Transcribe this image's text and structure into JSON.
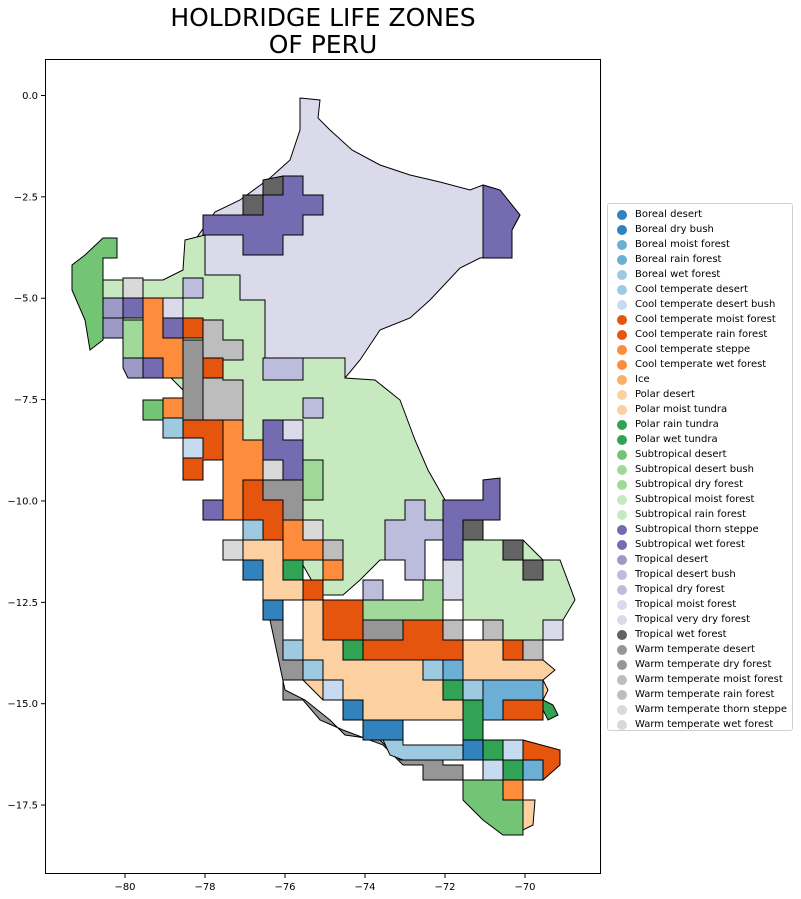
{
  "title_line1": "HOLDRIDGE LIFE ZONES",
  "title_line2": "OF PERU",
  "x_ticks": [
    -80,
    -78,
    -76,
    -74,
    -72,
    -70
  ],
  "x_tick_labels": [
    "−80",
    "−78",
    "−76",
    "−74",
    "−72",
    "−70"
  ],
  "y_ticks": [
    0.0,
    -2.5,
    -5.0,
    -7.5,
    -10.0,
    -12.5,
    -15.0,
    -17.5
  ],
  "y_tick_labels": [
    "0.0",
    "−2.5",
    "−5.0",
    "−7.5",
    "−10.0",
    "−12.5",
    "−15.0",
    "−17.5"
  ],
  "xlim": [
    -82.0,
    -68.1
  ],
  "ylim": [
    -19.2,
    0.9
  ],
  "legend": [
    {
      "label": "Boreal desert",
      "color": "#3182bd"
    },
    {
      "label": "Boreal dry bush",
      "color": "#3182bd"
    },
    {
      "label": "Boreal moist forest",
      "color": "#6baed6"
    },
    {
      "label": "Boreal rain forest",
      "color": "#6baed6"
    },
    {
      "label": "Boreal wet forest",
      "color": "#9ecae1"
    },
    {
      "label": "Cool temperate desert",
      "color": "#9ecae1"
    },
    {
      "label": "Cool temperate desert bush",
      "color": "#c6dbef"
    },
    {
      "label": "Cool temperate moist forest",
      "color": "#e6550d"
    },
    {
      "label": "Cool temperate rain forest",
      "color": "#e6550d"
    },
    {
      "label": "Cool temperate steppe",
      "color": "#fd8d3c"
    },
    {
      "label": "Cool temperate wet forest",
      "color": "#fd8d3c"
    },
    {
      "label": "Ice",
      "color": "#fdae6b"
    },
    {
      "label": "Polar desert",
      "color": "#fdd0a2"
    },
    {
      "label": "Polar moist tundra",
      "color": "#fdd0a2"
    },
    {
      "label": "Polar rain tundra",
      "color": "#31a354"
    },
    {
      "label": "Polar wet tundra",
      "color": "#31a354"
    },
    {
      "label": "Subtropical desert",
      "color": "#74c476"
    },
    {
      "label": "Subtropical desert bush",
      "color": "#a1d99b"
    },
    {
      "label": "Subtropical dry forest",
      "color": "#a1d99b"
    },
    {
      "label": "Subtropical moist forest",
      "color": "#c7e9c0"
    },
    {
      "label": "Subtropical rain forest",
      "color": "#c7e9c0"
    },
    {
      "label": "Subtropical thorn steppe",
      "color": "#756bb1"
    },
    {
      "label": "Subtropical wet forest",
      "color": "#756bb1"
    },
    {
      "label": "Tropical desert",
      "color": "#9e9ac8"
    },
    {
      "label": "Tropical desert bush",
      "color": "#bcbddc"
    },
    {
      "label": "Tropical dry forest",
      "color": "#bcbddc"
    },
    {
      "label": "Tropical moist forest",
      "color": "#dadaeb"
    },
    {
      "label": "Tropical very dry forest",
      "color": "#dadaeb"
    },
    {
      "label": "Tropical wet forest",
      "color": "#636363"
    },
    {
      "label": "Warm temperate desert",
      "color": "#969696"
    },
    {
      "label": "Warm temperate dry forest",
      "color": "#969696"
    },
    {
      "label": "Warm temperate moist forest",
      "color": "#bdbdbd"
    },
    {
      "label": "Warm temperate rain forest",
      "color": "#bdbdbd"
    },
    {
      "label": "Warm temperate thorn steppe",
      "color": "#d9d9d9"
    },
    {
      "label": "Warm temperate wet forest",
      "color": "#d9d9d9"
    }
  ]
}
